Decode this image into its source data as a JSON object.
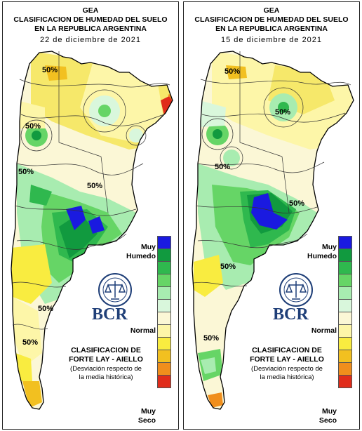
{
  "maps": [
    {
      "header_lines": [
        "GEA",
        "CLASIFICACION DE HUMEDAD DEL SUELO",
        "EN LA REPUBLICA ARGENTINA"
      ],
      "date": "22 de diciembre de 2021",
      "contour_labels": [
        "50%",
        "50%",
        "50%",
        "50%",
        "50%",
        "50%"
      ]
    },
    {
      "header_lines": [
        "GEA",
        "CLASIFICACION DE HUMEDAD DEL SUELO",
        "EN LA REPUBLICA ARGENTINA"
      ],
      "date": "15 de diciembre de 2021",
      "contour_labels": [
        "50%",
        "50%",
        "50%",
        "50%",
        "50%",
        "50%"
      ]
    }
  ],
  "legend": {
    "top_label_1": "Muy",
    "top_label_2": "Humedo",
    "middle_label": "Normal",
    "bottom_label_1": "Muy",
    "bottom_label_2": "Seco",
    "colors": [
      "#1a1ae0",
      "#119a3f",
      "#2fb84e",
      "#66d566",
      "#a8ecb0",
      "#d9f7dc",
      "#fbf7d6",
      "#fdf6a8",
      "#f9ec40",
      "#f2c020",
      "#f08e1c",
      "#e02c1a"
    ]
  },
  "branding": {
    "logo_text": "BCR",
    "classification_title_1": "CLASIFICACION DE",
    "classification_title_2": "FORTE LAY - AIELLO",
    "classification_sub_1": "(Desviación respecto de",
    "classification_sub_2": "la media histórica)"
  }
}
